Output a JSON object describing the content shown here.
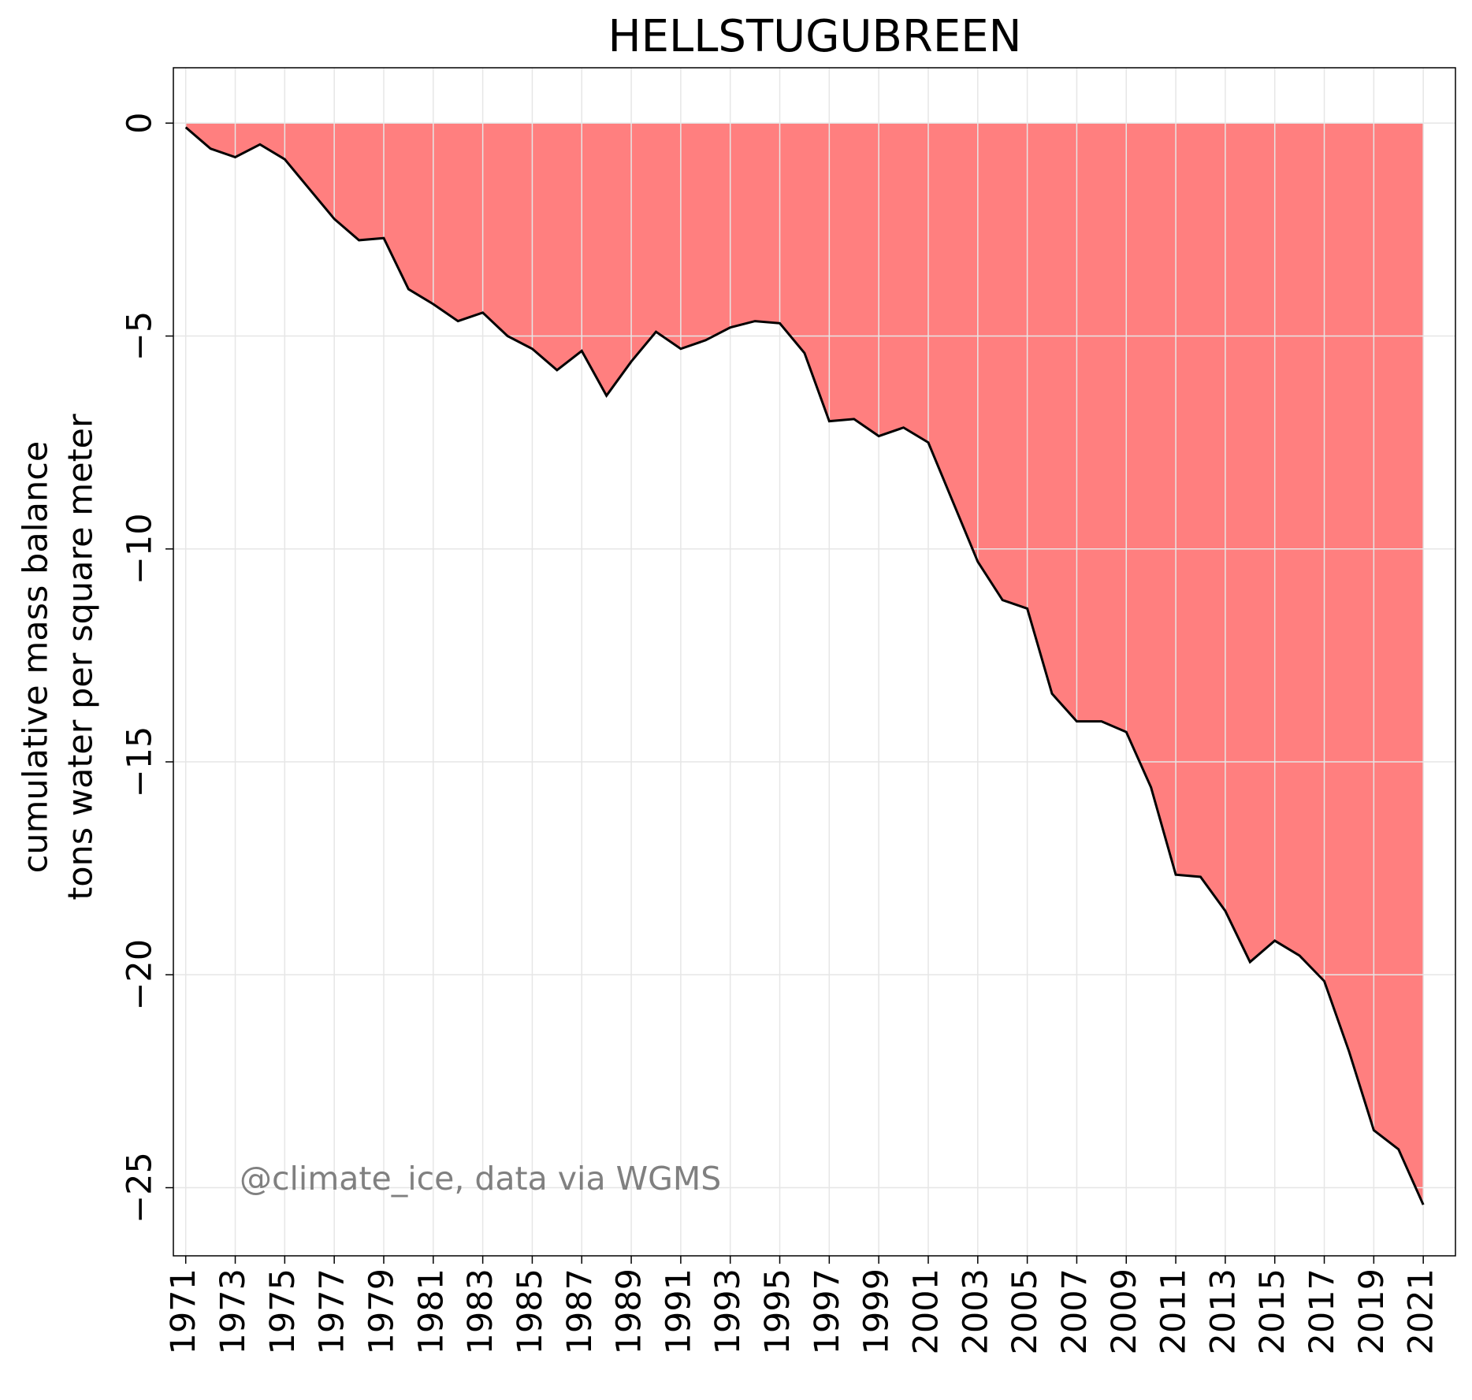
{
  "chart_data": {
    "type": "area",
    "title": "HELLSTUGUBREEN",
    "ylabel": [
      "cumulative mass balance",
      "tons water per square meter"
    ],
    "annotation": "@climate_ice, data via WGMS",
    "x": [
      1971,
      1972,
      1973,
      1974,
      1975,
      1976,
      1977,
      1978,
      1979,
      1980,
      1981,
      1982,
      1983,
      1984,
      1985,
      1986,
      1987,
      1988,
      1989,
      1990,
      1991,
      1992,
      1993,
      1994,
      1995,
      1996,
      1997,
      1998,
      1999,
      2000,
      2001,
      2002,
      2003,
      2004,
      2005,
      2006,
      2007,
      2008,
      2009,
      2010,
      2011,
      2012,
      2013,
      2014,
      2015,
      2016,
      2017,
      2018,
      2019,
      2020,
      2021
    ],
    "values": [
      -0.1,
      -0.6,
      -0.8,
      -0.5,
      -0.85,
      -1.55,
      -2.25,
      -2.75,
      -2.7,
      -3.9,
      -4.25,
      -4.65,
      -4.45,
      -5.0,
      -5.3,
      -5.8,
      -5.35,
      -6.4,
      -5.6,
      -4.9,
      -5.3,
      -5.1,
      -4.8,
      -4.65,
      -4.7,
      -5.4,
      -7.0,
      -6.95,
      -7.35,
      -7.15,
      -7.5,
      -8.9,
      -10.3,
      -11.2,
      -11.4,
      -13.4,
      -14.05,
      -14.05,
      -14.3,
      -15.6,
      -17.65,
      -17.7,
      -18.5,
      -19.7,
      -19.2,
      -19.55,
      -20.15,
      -21.8,
      -23.65,
      -24.1,
      -25.4
    ],
    "fill_color": "#ff7f7f",
    "line_color": "#000000",
    "xlim": [
      1970.5,
      2022.3
    ],
    "ylim": [
      -26.6,
      1.3
    ],
    "xticks": [
      1971,
      1973,
      1975,
      1977,
      1979,
      1981,
      1983,
      1985,
      1987,
      1989,
      1991,
      1993,
      1995,
      1997,
      1999,
      2001,
      2003,
      2005,
      2007,
      2009,
      2011,
      2013,
      2015,
      2017,
      2019,
      2021
    ],
    "yticks": [
      0,
      {
        "value": -5,
        "label": "−5"
      },
      {
        "value": -10,
        "label": "−10"
      },
      {
        "value": -15,
        "label": "−15"
      },
      {
        "value": -20,
        "label": "−20"
      },
      {
        "value": -25,
        "label": "−25"
      }
    ],
    "grid": true
  }
}
